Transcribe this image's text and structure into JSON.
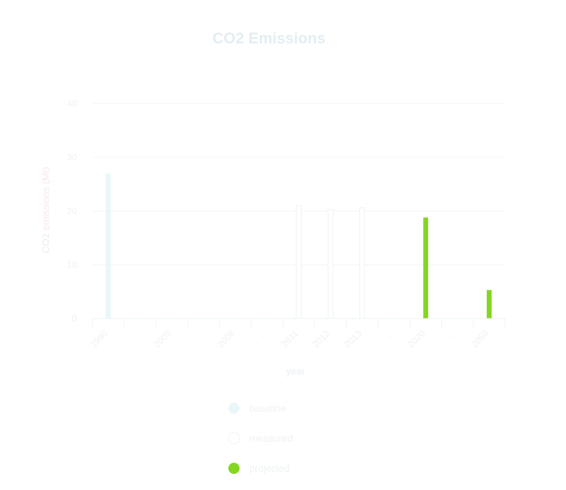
{
  "chart_data": {
    "type": "bar",
    "title": "CO2 Emissions",
    "xlabel": "year",
    "ylabel": "CO2 emissions (Mt)",
    "ylim": [
      0,
      40
    ],
    "yticks": [
      0,
      10,
      20,
      30,
      40
    ],
    "categories": [
      "1990",
      "...",
      "2005",
      "...",
      "2008",
      "...",
      "2011",
      "2012",
      "2013",
      "...",
      "2020",
      "...",
      "2050"
    ],
    "series": [
      {
        "name": "baseline",
        "color": "#eaf7fa",
        "values": [
          27,
          null,
          null,
          null,
          null,
          null,
          null,
          null,
          null,
          null,
          null,
          null,
          null
        ]
      },
      {
        "name": "measured",
        "color": "#ffffff",
        "values": [
          null,
          null,
          null,
          null,
          null,
          null,
          21,
          20.3,
          20.6,
          null,
          null,
          null,
          null
        ]
      },
      {
        "name": "projected",
        "color": "#84d620",
        "values": [
          null,
          null,
          null,
          null,
          null,
          null,
          null,
          null,
          null,
          null,
          18.8,
          null,
          5.3
        ]
      }
    ],
    "grid": true,
    "legend_position": "bottom"
  }
}
